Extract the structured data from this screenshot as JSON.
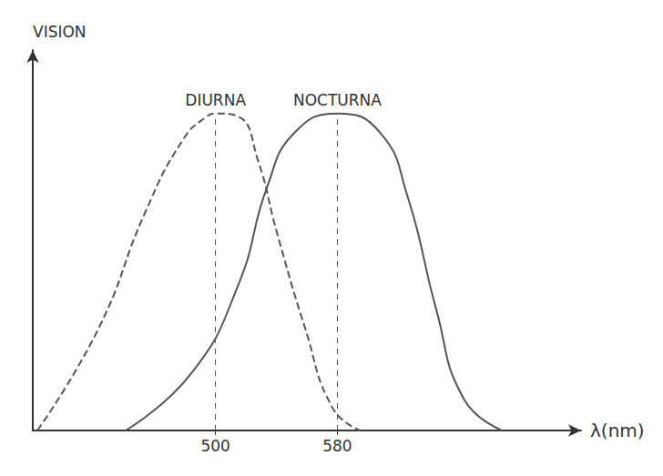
{
  "chart_data": {
    "type": "line",
    "y_label": "VISION",
    "x_label": "λ(nm)",
    "xlim": [
      380,
      740
    ],
    "xticks": [
      500,
      580
    ],
    "ylim": [
      0,
      1.2
    ],
    "tick_labels": "x",
    "grid": false,
    "series": [
      {
        "name": "DIURNA",
        "color": "#555555",
        "line_style": "dashed",
        "marker": "none",
        "x": [
          383,
          423,
          454,
          479,
          494,
          500,
          515,
          528,
          540,
          559,
          577,
          595
        ],
        "values": [
          0,
          0.32,
          0.69,
          0.92,
          0.99,
          1.0,
          0.99,
          0.85,
          0.63,
          0.32,
          0.07,
          0
        ]
      },
      {
        "name": "NOCTURNA",
        "color": "#555555",
        "line_style": "solid",
        "marker": "none",
        "x": [
          441,
          484,
          515,
          534,
          552,
          580,
          608,
          626,
          645,
          663,
          688
        ],
        "values": [
          0,
          0.18,
          0.46,
          0.77,
          0.94,
          1.0,
          0.94,
          0.74,
          0.38,
          0.1,
          0
        ]
      }
    ]
  }
}
